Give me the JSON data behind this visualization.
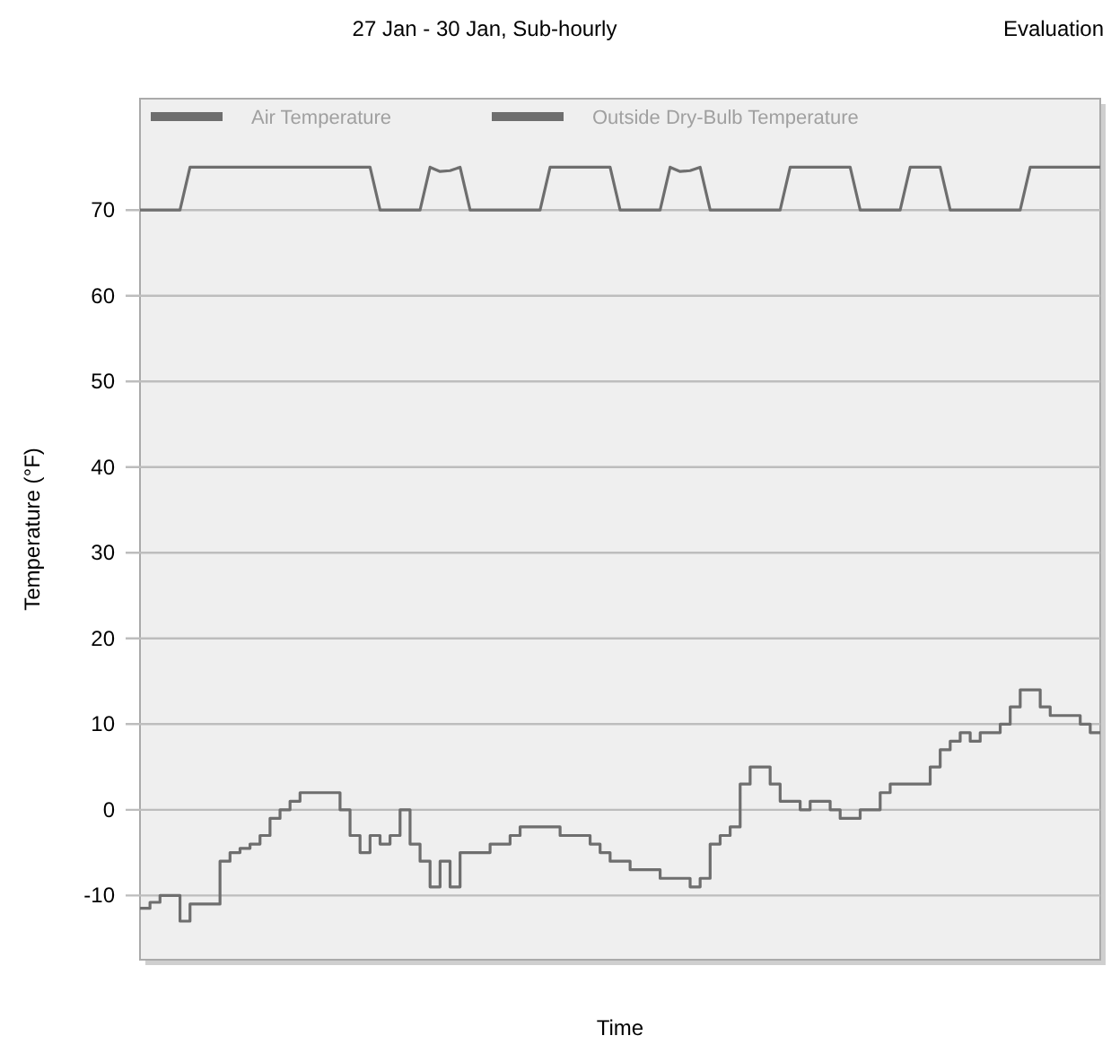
{
  "chart_data": {
    "type": "line",
    "title": "27 Jan - 30 Jan, Sub-hourly",
    "annotations": [
      "Evaluation"
    ],
    "xlabel": "Time",
    "ylabel": "Temperature (°F)",
    "categories": [
      null,
      null,
      null,
      null,
      null,
      null,
      null,
      null,
      null,
      null,
      null,
      null,
      null,
      null,
      null,
      null,
      null,
      null,
      null,
      null,
      null,
      null,
      null,
      null,
      null,
      null,
      null,
      null,
      null,
      null,
      null,
      null,
      null,
      null,
      null,
      null,
      null,
      null,
      null,
      null,
      null,
      null,
      null,
      null,
      null,
      null,
      null,
      null,
      null,
      null,
      null,
      null,
      null,
      null,
      null,
      null,
      null,
      null,
      null,
      null,
      null,
      null,
      null,
      null,
      null,
      null,
      null,
      null,
      null,
      null,
      null,
      null,
      null,
      null,
      null,
      null,
      null,
      null,
      null,
      null,
      null,
      null,
      null,
      null,
      null,
      null,
      null,
      null,
      null,
      null,
      null,
      null,
      null,
      null,
      null,
      null,
      null
    ],
    "series": [
      {
        "name": "Air Temperature",
        "color": "#6e6e6e",
        "values": [
          70,
          70,
          70,
          70,
          70,
          75,
          75,
          75,
          75,
          75,
          75,
          75,
          75,
          75,
          75,
          75,
          75,
          75,
          75,
          75,
          75,
          75,
          75,
          75,
          70,
          70,
          70,
          70,
          70,
          75,
          74.5,
          74.6,
          75,
          70,
          70,
          70,
          70,
          70,
          70,
          70,
          70,
          75,
          75,
          75,
          75,
          75,
          75,
          75,
          70,
          70,
          70,
          70,
          70,
          75,
          74.5,
          74.6,
          75,
          70,
          70,
          70,
          70,
          70,
          70,
          70,
          70,
          75,
          75,
          75,
          75,
          75,
          75,
          75,
          70,
          70,
          70,
          70,
          70,
          75,
          75,
          75,
          75,
          70,
          70,
          70,
          70,
          70,
          70,
          70,
          70,
          75,
          75,
          75,
          75,
          75,
          75,
          75,
          75
        ]
      },
      {
        "name": "Outside Dry-Bulb Temperature",
        "type": "step",
        "color": "#6e6e6e",
        "values": [
          -11.5,
          -10.8,
          -10,
          -10,
          -13,
          -11,
          -11,
          -11,
          -6,
          -5,
          -4.5,
          -4,
          -3,
          -1,
          0,
          1,
          2,
          2,
          2,
          2,
          0,
          -3,
          -5,
          -3,
          -4,
          -3,
          0,
          -4,
          -6,
          -9,
          -6,
          -9,
          -5,
          -5,
          -5,
          -4,
          -4,
          -3,
          -2,
          -2,
          -2,
          -2,
          -3,
          -3,
          -3,
          -4,
          -5,
          -6,
          -6,
          -7,
          -7,
          -7,
          -8,
          -8,
          -8,
          -9,
          -8,
          -4,
          -3,
          -2,
          3,
          5,
          5,
          3,
          1,
          1,
          0,
          1,
          1,
          0,
          -1,
          -1,
          0,
          0,
          2,
          3,
          3,
          3,
          3,
          5,
          7,
          8,
          9,
          8,
          9,
          9,
          10,
          12,
          14,
          14,
          12,
          11,
          11,
          11,
          10,
          9,
          9
        ]
      }
    ],
    "ylim": [
      -17.5,
      83
    ],
    "yticks": [
      -10,
      0,
      10,
      20,
      30,
      40,
      50,
      60,
      70
    ],
    "grid": "y",
    "legend": "top left"
  }
}
